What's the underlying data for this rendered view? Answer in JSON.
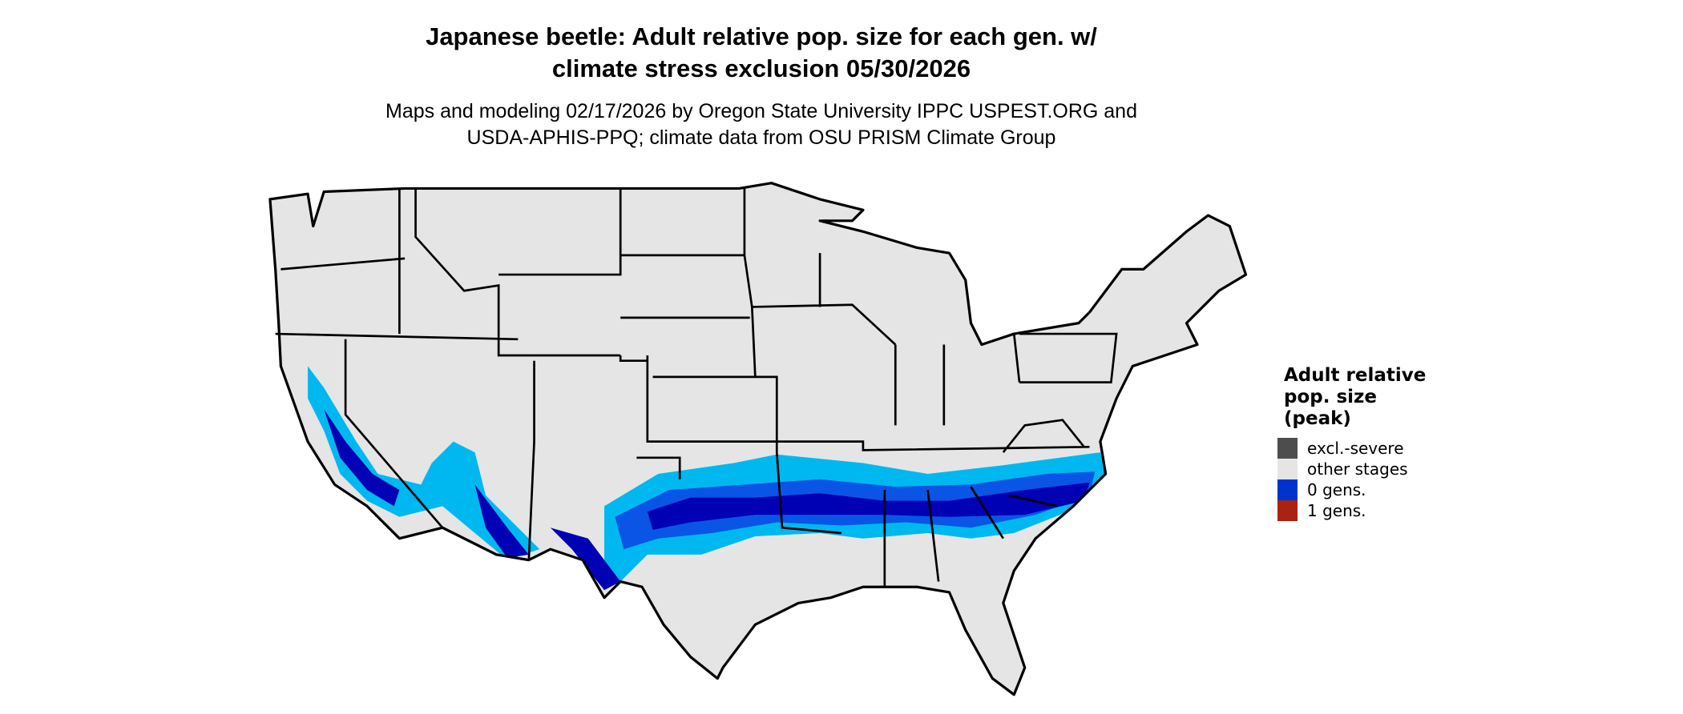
{
  "title_lines": [
    "Japanese beetle: Adult relative pop. size for each gen. w/",
    "climate stress exclusion 05/30/2026"
  ],
  "subtitle_lines": [
    "Maps and modeling 02/17/2026 by Oregon State University IPPC USPEST.ORG and",
    "USDA-APHIS-PPQ; climate data from OSU PRISM Climate Group"
  ],
  "legend": {
    "title_lines": [
      "Adult relative",
      "pop. size",
      "(peak)"
    ],
    "items": [
      {
        "label": "excl.-severe",
        "color": "#4d4d4d"
      },
      {
        "label": "other stages",
        "color": "#e5e5e5"
      },
      {
        "label": "0 gens.",
        "color": "#0033cc"
      },
      {
        "label": "1 gens.",
        "color": "#aa2211"
      }
    ]
  },
  "map_colors": {
    "land": "#e5e5e5",
    "border": "#000000",
    "light_band": "#00b8f0",
    "mid_band": "#0a55e6",
    "dark_band": "#0000b4"
  }
}
